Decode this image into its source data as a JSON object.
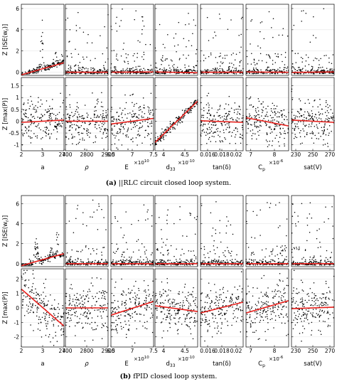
{
  "colors": {
    "points": "#000000",
    "fit": "#e8201c",
    "frame": "#000000",
    "grid": "#e6e6e6"
  },
  "chart_data": [
    {
      "type": "scatter",
      "caption_label": "(a)",
      "caption_text": "||RLC circuit closed loop system.",
      "columns": [
        {
          "xlabel": "a",
          "xlim": [
            2,
            4
          ],
          "xticks": [
            "2",
            "3",
            "4"
          ],
          "exp": ""
        },
        {
          "xlabel": "ρ",
          "xlim": [
            2700,
            2900
          ],
          "xticks": [
            "2700",
            "2800",
            "2900"
          ],
          "exp": ""
        },
        {
          "xlabel": "E",
          "xlim": [
            6.5,
            7.5
          ],
          "xticks": [
            "6.5",
            "7",
            "7.5"
          ],
          "exp": "×10",
          "exp_sup": "10"
        },
        {
          "xlabel": "d",
          "xlabel_sub": "33",
          "xlim": [
            3.8,
            4.8
          ],
          "xticks": [
            "4",
            "4.5"
          ],
          "exp": "×10",
          "exp_sup": "-10"
        },
        {
          "xlabel": "tan(δ)",
          "xlim": [
            0.015,
            0.021
          ],
          "xticks": [
            "0.016",
            "0.018",
            "0.02"
          ],
          "exp": ""
        },
        {
          "xlabel": "C",
          "xlabel_sub": "p",
          "xlim": [
            6.8,
            8.6
          ],
          "xticks": [
            "7",
            "8"
          ],
          "exp": "×10",
          "exp_sup": "-6"
        },
        {
          "xlabel": "sat(V)",
          "xlim": [
            225,
            275
          ],
          "xticks": [
            "230",
            "250",
            "270"
          ],
          "exp": ""
        }
      ],
      "rows": [
        {
          "ylabel": "Z [ISE(w",
          "ylabel_sub": "r",
          "ylabel_end": ")]",
          "ylim": [
            -0.3,
            6.4
          ],
          "yticks": [
            "6",
            "4",
            "2",
            "0"
          ],
          "fit_lines": [
            {
              "x": [
                2,
                4
              ],
              "y": [
                -0.25,
                0.9
              ]
            },
            {
              "x": [
                2700,
                2900
              ],
              "y": [
                0.0,
                0.0
              ]
            },
            {
              "x": [
                6.5,
                7.5
              ],
              "y": [
                0.0,
                0.02
              ]
            },
            {
              "x": [
                3.8,
                4.8
              ],
              "y": [
                0.02,
                -0.05
              ]
            },
            {
              "x": [
                0.015,
                0.021
              ],
              "y": [
                0.0,
                0.0
              ]
            },
            {
              "x": [
                6.8,
                8.6
              ],
              "y": [
                0.02,
                -0.01
              ]
            },
            {
              "x": [
                225,
                275
              ],
              "y": [
                -0.02,
                0.02
              ]
            }
          ]
        },
        {
          "ylabel": "Z [max(P)]",
          "ylim": [
            -1.25,
            1.85
          ],
          "yticks": [
            "1.5",
            "1",
            "0.5",
            "0",
            "-0.5",
            "-1"
          ],
          "fit_lines": [
            {
              "x": [
                2,
                4
              ],
              "y": [
                -0.05,
                0.05
              ]
            },
            {
              "x": [
                2700,
                2900
              ],
              "y": [
                0.0,
                0.0
              ]
            },
            {
              "x": [
                6.5,
                7.5
              ],
              "y": [
                -0.12,
                0.12
              ]
            },
            {
              "x": [
                3.8,
                4.8
              ],
              "y": [
                -0.9,
                0.85
              ]
            },
            {
              "x": [
                0.015,
                0.021
              ],
              "y": [
                0.02,
                -0.05
              ]
            },
            {
              "x": [
                6.8,
                8.6
              ],
              "y": [
                0.15,
                -0.2
              ]
            },
            {
              "x": [
                225,
                275
              ],
              "y": [
                0.05,
                -0.05
              ]
            }
          ]
        }
      ]
    },
    {
      "type": "scatter",
      "caption_label": "(b)",
      "caption_text": "fPID closed loop system.",
      "columns": [
        {
          "xlabel": "a",
          "xlim": [
            2,
            4
          ],
          "xticks": [
            "2",
            "3",
            "4"
          ],
          "exp": ""
        },
        {
          "xlabel": "ρ",
          "xlim": [
            2700,
            2900
          ],
          "xticks": [
            "2700",
            "2800",
            "2900"
          ],
          "exp": ""
        },
        {
          "xlabel": "E",
          "xlim": [
            6.5,
            7.5
          ],
          "xticks": [
            "6.5",
            "7",
            "7.5"
          ],
          "exp": "×10",
          "exp_sup": "10"
        },
        {
          "xlabel": "d",
          "xlabel_sub": "33",
          "xlim": [
            3.8,
            4.8
          ],
          "xticks": [
            "4",
            "4.5"
          ],
          "exp": "×10",
          "exp_sup": "-10"
        },
        {
          "xlabel": "tan(δ)",
          "xlim": [
            0.015,
            0.021
          ],
          "xticks": [
            "0.016",
            "0.018",
            "0.02"
          ],
          "exp": ""
        },
        {
          "xlabel": "C",
          "xlabel_sub": "p",
          "xlim": [
            6.8,
            8.6
          ],
          "xticks": [
            "7",
            "8"
          ],
          "exp": "×10",
          "exp_sup": "-6"
        },
        {
          "xlabel": "sat(V)",
          "xlim": [
            225,
            275
          ],
          "xticks": [
            "230",
            "250",
            "270"
          ],
          "exp": ""
        }
      ],
      "rows": [
        {
          "ylabel": "Z [ISE(w",
          "ylabel_sub": "r",
          "ylabel_end": ")]",
          "ylim": [
            -0.3,
            6.8
          ],
          "yticks": [
            "6",
            "4",
            "2",
            "0"
          ],
          "fit_lines": [
            {
              "x": [
                2,
                4
              ],
              "y": [
                -0.2,
                1.0
              ]
            },
            {
              "x": [
                2700,
                2900
              ],
              "y": [
                0.0,
                0.0
              ]
            },
            {
              "x": [
                6.5,
                7.5
              ],
              "y": [
                0.0,
                0.0
              ]
            },
            {
              "x": [
                3.8,
                4.8
              ],
              "y": [
                0.0,
                0.0
              ]
            },
            {
              "x": [
                0.015,
                0.021
              ],
              "y": [
                0.0,
                0.0
              ]
            },
            {
              "x": [
                6.8,
                8.6
              ],
              "y": [
                0.0,
                0.0
              ]
            },
            {
              "x": [
                225,
                275
              ],
              "y": [
                0.0,
                0.0
              ]
            }
          ]
        },
        {
          "ylabel": "Z [max(P)]",
          "ylim": [
            -2.7,
            2.7
          ],
          "yticks": [
            "2",
            "1",
            "0",
            "-1",
            "-2"
          ],
          "fit_lines": [
            {
              "x": [
                2,
                4
              ],
              "y": [
                1.3,
                -1.25
              ]
            },
            {
              "x": [
                2700,
                2900
              ],
              "y": [
                0.0,
                0.0
              ]
            },
            {
              "x": [
                6.5,
                7.5
              ],
              "y": [
                -0.5,
                0.45
              ]
            },
            {
              "x": [
                3.8,
                4.8
              ],
              "y": [
                0.15,
                -0.25
              ]
            },
            {
              "x": [
                0.015,
                0.021
              ],
              "y": [
                -0.35,
                0.4
              ]
            },
            {
              "x": [
                6.8,
                8.6
              ],
              "y": [
                -0.35,
                0.5
              ]
            },
            {
              "x": [
                225,
                275
              ],
              "y": [
                -0.05,
                0.05
              ]
            }
          ]
        }
      ]
    }
  ]
}
